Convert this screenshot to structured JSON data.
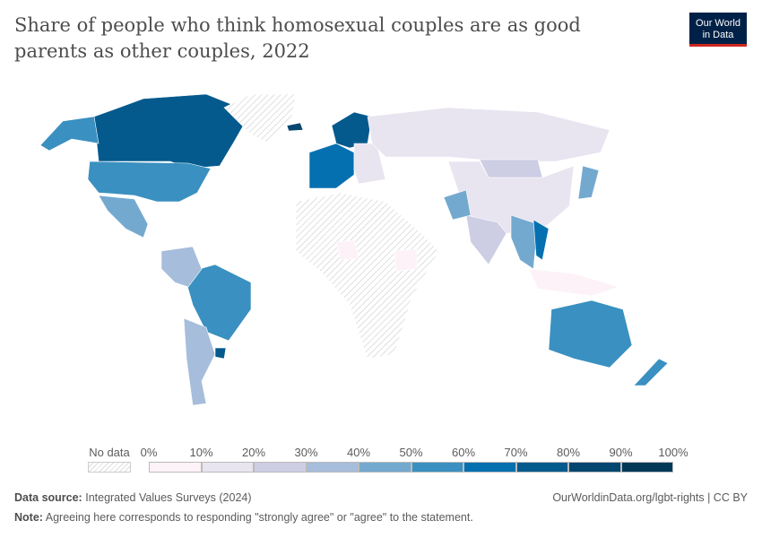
{
  "header": {
    "title": "Share of people who think homosexual couples are as good parents as other couples, 2022",
    "logo_text": "Our World in Data"
  },
  "legend": {
    "no_data_label": "No data",
    "ticks": [
      "0%",
      "10%",
      "20%",
      "30%",
      "40%",
      "50%",
      "60%",
      "70%",
      "80%",
      "90%",
      "100%"
    ],
    "colors": [
      "#fcf2f8",
      "#e8e4f0",
      "#cdcee4",
      "#a6bddb",
      "#74a9cf",
      "#3a90c0",
      "#0570b0",
      "#045a8d",
      "#03466f",
      "#023858"
    ],
    "no_data_color": "#e0e0e0"
  },
  "chart_data": {
    "type": "choropleth",
    "title": "Share of people who think homosexual couples are as good parents as other couples, 2022",
    "unit": "%",
    "bins": [
      0,
      10,
      20,
      30,
      40,
      50,
      60,
      70,
      80,
      90,
      100
    ],
    "regions": [
      {
        "name": "Canada",
        "bin": "70-80%"
      },
      {
        "name": "United States",
        "bin": "50-60%"
      },
      {
        "name": "Alaska",
        "bin": "50-60%"
      },
      {
        "name": "Mexico",
        "bin": "40-50%"
      },
      {
        "name": "Greenland",
        "bin": "No data"
      },
      {
        "name": "Brazil",
        "bin": "50-60%"
      },
      {
        "name": "Argentina",
        "bin": "30-40%"
      },
      {
        "name": "Uruguay",
        "bin": "70-80%"
      },
      {
        "name": "Colombia/Andes",
        "bin": "30-40%"
      },
      {
        "name": "Western Europe",
        "bin": "60-70%"
      },
      {
        "name": "Scandinavia",
        "bin": "70-80%"
      },
      {
        "name": "Eastern Europe",
        "bin": "10-20%"
      },
      {
        "name": "Russia",
        "bin": "10-20%"
      },
      {
        "name": "China",
        "bin": "10-20%"
      },
      {
        "name": "Mongolia",
        "bin": "20-30%"
      },
      {
        "name": "India",
        "bin": "20-30%"
      },
      {
        "name": "Pakistan",
        "bin": "40-50%"
      },
      {
        "name": "Southeast Asia",
        "bin": "40-50%"
      },
      {
        "name": "Vietnam",
        "bin": "60-70%"
      },
      {
        "name": "Japan",
        "bin": "40-50%"
      },
      {
        "name": "Indonesia",
        "bin": "0-10%"
      },
      {
        "name": "Australia",
        "bin": "50-60%"
      },
      {
        "name": "New Zealand",
        "bin": "50-60%"
      },
      {
        "name": "Africa (most)",
        "bin": "No data"
      },
      {
        "name": "Nigeria/Ethiopia",
        "bin": "0-10%"
      },
      {
        "name": "Iceland",
        "bin": "80-90%"
      }
    ]
  },
  "footer": {
    "source_label": "Data source:",
    "source": "Integrated Values Surveys (2024)",
    "url": "OurWorldinData.org/lgbt-rights | CC BY",
    "note_label": "Note:",
    "note": "Agreeing here corresponds to responding \"strongly agree\" or \"agree\" to the statement."
  }
}
